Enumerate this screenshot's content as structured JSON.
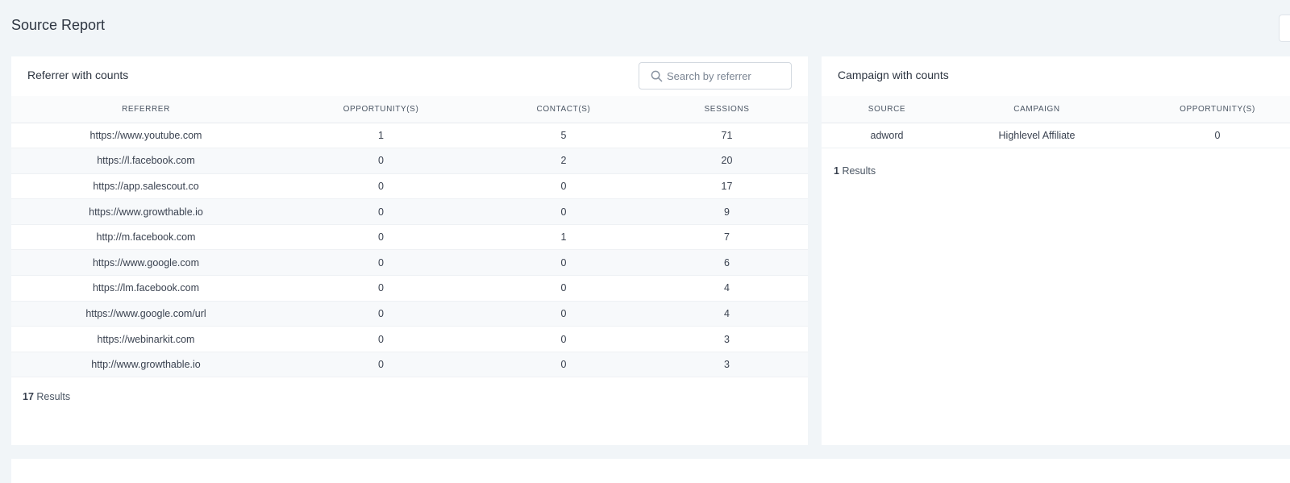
{
  "page": {
    "title": "Source Report"
  },
  "referrer": {
    "title": "Referrer with counts",
    "search_placeholder": "Search by referrer",
    "columns": [
      "REFERRER",
      "OPPORTUNITY(S)",
      "CONTACT(S)",
      "SESSIONS"
    ],
    "rows": [
      [
        "https://www.youtube.com",
        "1",
        "5",
        "71"
      ],
      [
        "https://l.facebook.com",
        "0",
        "2",
        "20"
      ],
      [
        "https://app.salescout.co",
        "0",
        "0",
        "17"
      ],
      [
        "https://www.growthable.io",
        "0",
        "0",
        "9"
      ],
      [
        "http://m.facebook.com",
        "0",
        "1",
        "7"
      ],
      [
        "https://www.google.com",
        "0",
        "0",
        "6"
      ],
      [
        "https://lm.facebook.com",
        "0",
        "0",
        "4"
      ],
      [
        "https://www.google.com/url",
        "0",
        "0",
        "4"
      ],
      [
        "https://webinarkit.com",
        "0",
        "0",
        "3"
      ],
      [
        "http://www.growthable.io",
        "0",
        "0",
        "3"
      ]
    ],
    "results_count": "17",
    "results_label": "Results"
  },
  "campaign": {
    "title": "Campaign with counts",
    "columns": [
      "SOURCE",
      "CAMPAIGN",
      "OPPORTUNITY(S)"
    ],
    "rows": [
      [
        "adword",
        "Highlevel Affiliate",
        "0"
      ]
    ],
    "results_count": "1",
    "results_label": "Results"
  },
  "icons": {
    "search": "search-icon"
  },
  "colors": {
    "background": "#f1f5f8",
    "card": "#ffffff",
    "text": "#3a4250"
  }
}
